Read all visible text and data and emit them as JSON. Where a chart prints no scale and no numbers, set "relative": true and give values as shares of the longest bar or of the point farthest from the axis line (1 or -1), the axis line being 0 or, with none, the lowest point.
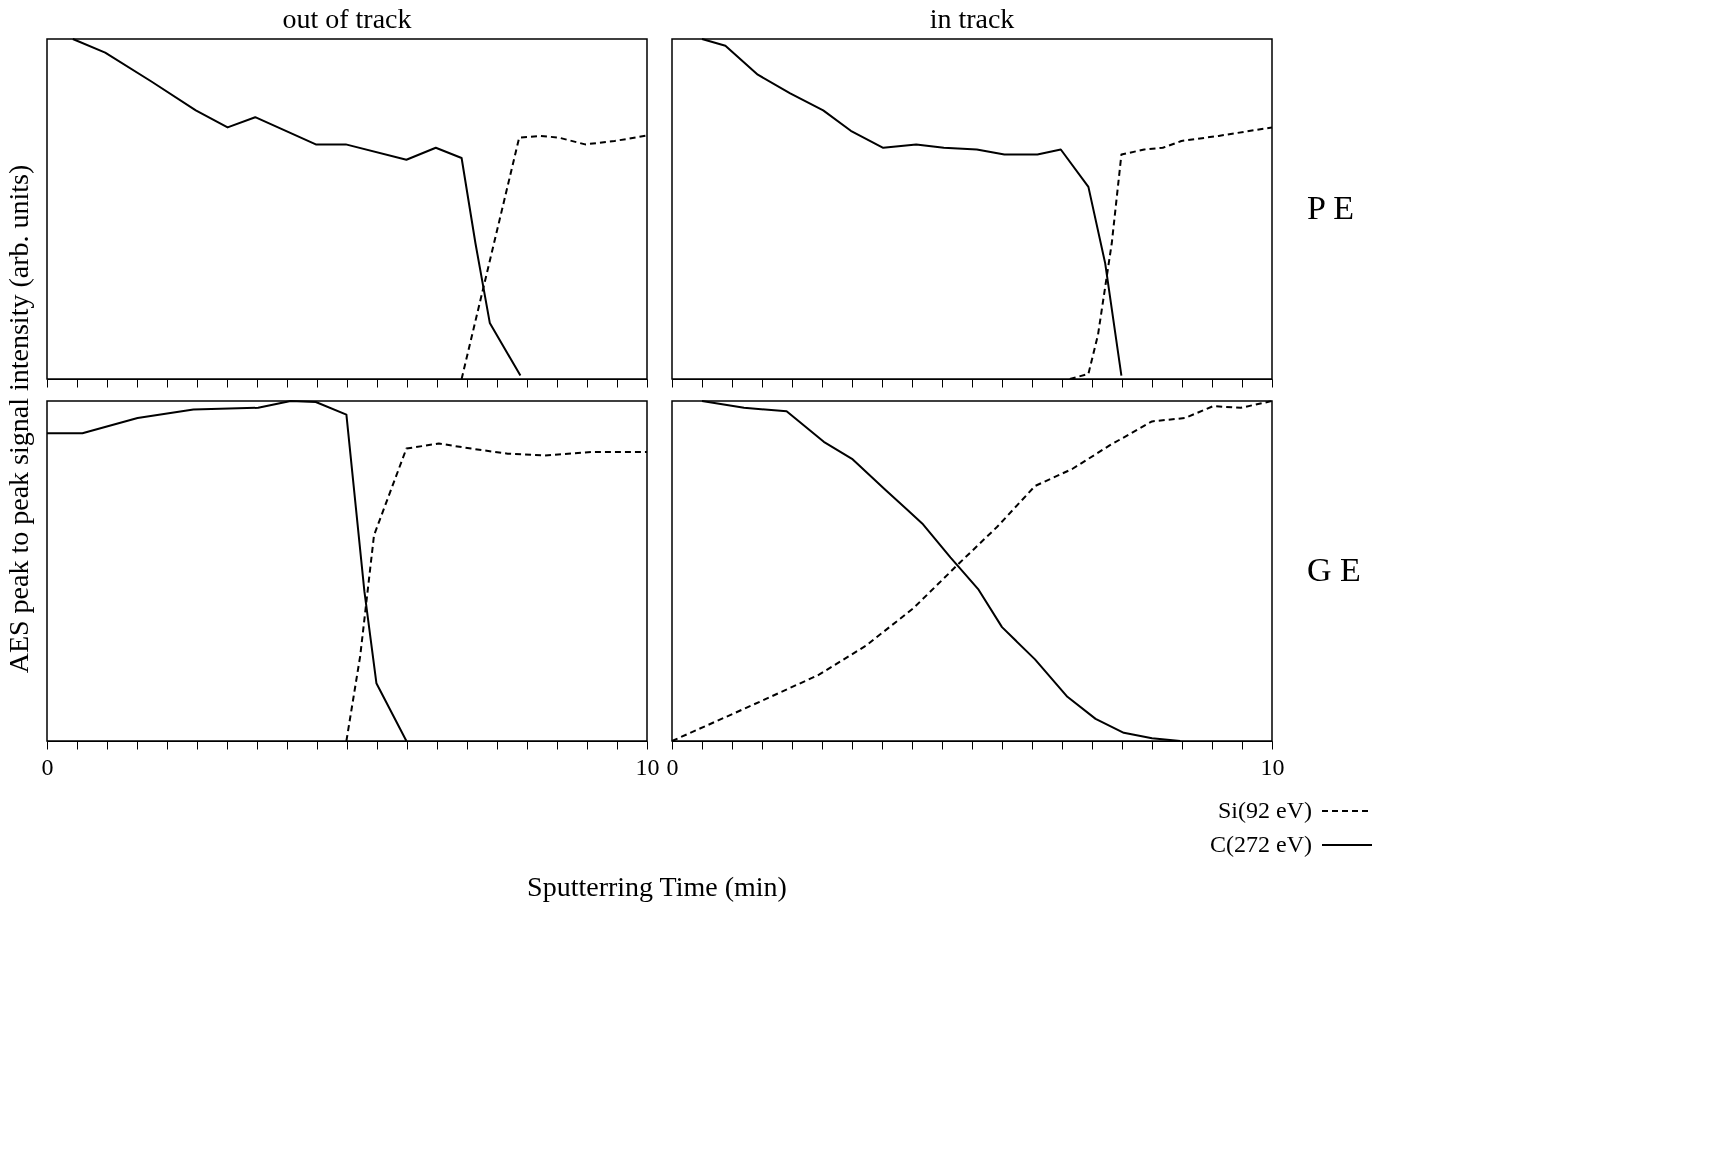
{
  "chart_data": [
    {
      "type": "line",
      "title": "out of track",
      "ylabel": "AES peak to peak signal intensity (arb. units)",
      "relative": true,
      "xlim": [
        0,
        10
      ],
      "tick_labels": false,
      "grid": false,
      "xticks": [
        {
          "value": 0,
          "label": null
        },
        {
          "value": 0.5,
          "label": null
        },
        {
          "value": 1,
          "label": null
        },
        {
          "value": 1.5,
          "label": null
        },
        {
          "value": 2,
          "label": null
        },
        {
          "value": 2.5,
          "label": null
        },
        {
          "value": 3,
          "label": null
        },
        {
          "value": 3.5,
          "label": null
        },
        {
          "value": 4,
          "label": null
        },
        {
          "value": 4.5,
          "label": null
        },
        {
          "value": 5,
          "label": null
        },
        {
          "value": 5.5,
          "label": null
        },
        {
          "value": 6,
          "label": null
        },
        {
          "value": 6.5,
          "label": null
        },
        {
          "value": 7,
          "label": null
        },
        {
          "value": 7.5,
          "label": null
        },
        {
          "value": 8,
          "label": null
        },
        {
          "value": 8.5,
          "label": null
        },
        {
          "value": 9,
          "label": null
        },
        {
          "value": 9.5,
          "label": null
        },
        {
          "value": 10,
          "label": null
        }
      ],
      "series": [
        {
          "color": "#000000",
          "line_style": "dashed",
          "x": [
            6.91,
            7.87,
            8.22,
            8.53,
            8.97,
            9.46,
            10
          ],
          "values": [
            0,
            0.71,
            0.715,
            0.71,
            0.69,
            0.7,
            0.716
          ]
        },
        {
          "color": "#000000",
          "line_style": "solid",
          "x": [
            0.43,
            0.97,
            1.74,
            2.48,
            3.01,
            3.47,
            3.98,
            4.48,
            4.98,
            5.99,
            6.48,
            6.91,
            7.14,
            7.38,
            7.89
          ],
          "values": [
            1.0,
            0.96,
            0.875,
            0.79,
            0.74,
            0.77,
            0.73,
            0.69,
            0.69,
            0.645,
            0.68,
            0.65,
            0.4,
            0.165,
            0.01
          ]
        }
      ]
    },
    {
      "type": "line",
      "title": "in track",
      "annotations": [
        "P E"
      ],
      "relative": true,
      "xlim": [
        0,
        10
      ],
      "tick_labels": false,
      "grid": false,
      "xticks": [
        {
          "value": 0,
          "label": null
        },
        {
          "value": 0.5,
          "label": null
        },
        {
          "value": 1,
          "label": null
        },
        {
          "value": 1.5,
          "label": null
        },
        {
          "value": 2,
          "label": null
        },
        {
          "value": 2.5,
          "label": null
        },
        {
          "value": 3,
          "label": null
        },
        {
          "value": 3.5,
          "label": null
        },
        {
          "value": 4,
          "label": null
        },
        {
          "value": 4.5,
          "label": null
        },
        {
          "value": 5,
          "label": null
        },
        {
          "value": 5.5,
          "label": null
        },
        {
          "value": 6,
          "label": null
        },
        {
          "value": 6.5,
          "label": null
        },
        {
          "value": 7,
          "label": null
        },
        {
          "value": 7.5,
          "label": null
        },
        {
          "value": 8,
          "label": null
        },
        {
          "value": 8.5,
          "label": null
        },
        {
          "value": 9,
          "label": null
        },
        {
          "value": 9.5,
          "label": null
        },
        {
          "value": 10,
          "label": null
        }
      ],
      "series": [
        {
          "color": "#000000",
          "line_style": "dashed",
          "x": [
            6.63,
            6.94,
            7.1,
            7.33,
            7.49,
            7.87,
            8.18,
            8.49,
            9.11,
            10
          ],
          "values": [
            0,
            0.015,
            0.13,
            0.4,
            0.66,
            0.675,
            0.68,
            0.7,
            0.715,
            0.74
          ]
        },
        {
          "color": "#000000",
          "line_style": "solid",
          "x": [
            0.5,
            0.89,
            1.43,
            1.97,
            2.52,
            2.98,
            3.52,
            4.07,
            4.53,
            5.08,
            5.54,
            6.09,
            6.48,
            6.94,
            7.22,
            7.49
          ],
          "values": [
            1.0,
            0.98,
            0.895,
            0.84,
            0.79,
            0.73,
            0.68,
            0.69,
            0.68,
            0.675,
            0.66,
            0.66,
            0.675,
            0.565,
            0.34,
            0.01
          ]
        }
      ]
    },
    {
      "type": "line",
      "xlabel": "Sputterring Time (min)",
      "relative": true,
      "xlim": [
        0,
        10
      ],
      "grid": false,
      "xticks": [
        {
          "value": 0,
          "label": "0"
        },
        {
          "value": 0.5,
          "label": null
        },
        {
          "value": 1,
          "label": null
        },
        {
          "value": 1.5,
          "label": null
        },
        {
          "value": 2,
          "label": null
        },
        {
          "value": 2.5,
          "label": null
        },
        {
          "value": 3,
          "label": null
        },
        {
          "value": 3.5,
          "label": null
        },
        {
          "value": 4,
          "label": null
        },
        {
          "value": 4.5,
          "label": null
        },
        {
          "value": 5,
          "label": null
        },
        {
          "value": 5.5,
          "label": null
        },
        {
          "value": 6,
          "label": null
        },
        {
          "value": 6.5,
          "label": null
        },
        {
          "value": 7,
          "label": null
        },
        {
          "value": 7.5,
          "label": null
        },
        {
          "value": 8,
          "label": null
        },
        {
          "value": 8.5,
          "label": null
        },
        {
          "value": 9,
          "label": null
        },
        {
          "value": 9.5,
          "label": null
        },
        {
          "value": 10,
          "label": "10"
        }
      ],
      "series": [
        {
          "color": "#000000",
          "line_style": "dashed",
          "x": [
            4.99,
            5.22,
            5.45,
            5.99,
            6.53,
            7.07,
            7.68,
            8.3,
            9.07,
            10
          ],
          "values": [
            0,
            0.25,
            0.605,
            0.86,
            0.875,
            0.86,
            0.845,
            0.84,
            0.85,
            0.85
          ]
        },
        {
          "color": "#000000",
          "line_style": "solid",
          "x": [
            0,
            0.59,
            1.51,
            2.44,
            3.52,
            4.06,
            4.48,
            4.99,
            5.29,
            5.49,
            5.99
          ],
          "values": [
            0.905,
            0.905,
            0.95,
            0.975,
            0.98,
            1.0,
            0.997,
            0.96,
            0.44,
            0.17,
            0
          ]
        }
      ]
    },
    {
      "type": "line",
      "annotations": [
        "G E"
      ],
      "relative": true,
      "xlim": [
        0,
        10
      ],
      "grid": false,
      "legend": "bottom right",
      "xticks": [
        {
          "value": 0,
          "label": "0"
        },
        {
          "value": 0.5,
          "label": null
        },
        {
          "value": 1,
          "label": null
        },
        {
          "value": 1.5,
          "label": null
        },
        {
          "value": 2,
          "label": null
        },
        {
          "value": 2.5,
          "label": null
        },
        {
          "value": 3,
          "label": null
        },
        {
          "value": 3.5,
          "label": null
        },
        {
          "value": 4,
          "label": null
        },
        {
          "value": 4.5,
          "label": null
        },
        {
          "value": 5,
          "label": null
        },
        {
          "value": 5.5,
          "label": null
        },
        {
          "value": 6,
          "label": null
        },
        {
          "value": 6.5,
          "label": null
        },
        {
          "value": 7,
          "label": null
        },
        {
          "value": 7.5,
          "label": null
        },
        {
          "value": 8,
          "label": null
        },
        {
          "value": 8.5,
          "label": null
        },
        {
          "value": 9,
          "label": null
        },
        {
          "value": 9.5,
          "label": null
        },
        {
          "value": 10,
          "label": "10"
        }
      ],
      "series": [
        {
          "name": "Si(92 eV)",
          "color": "#000000",
          "line_style": "dashed",
          "x": [
            0,
            0.89,
            1.52,
            2.45,
            3.23,
            4.02,
            4.8,
            5.42,
            6.05,
            6.67,
            7.3,
            8.0,
            8.55,
            9.02,
            9.48,
            10
          ],
          "values": [
            0,
            0.07,
            0.12,
            0.195,
            0.28,
            0.39,
            0.525,
            0.63,
            0.75,
            0.8,
            0.87,
            0.94,
            0.95,
            0.985,
            0.98,
            1.0
          ]
        },
        {
          "name": "C(272 eV)",
          "color": "#000000",
          "line_style": "solid",
          "x": [
            0.5,
            1.2,
            1.91,
            2.53,
            3.0,
            3.55,
            4.17,
            4.64,
            5.11,
            5.5,
            6.05,
            6.59,
            7.06,
            7.53,
            8.0,
            8.47
          ],
          "values": [
            1.0,
            0.98,
            0.97,
            0.88,
            0.83,
            0.74,
            0.64,
            0.54,
            0.445,
            0.335,
            0.24,
            0.13,
            0.065,
            0.024,
            0.008,
            0
          ]
        }
      ]
    }
  ]
}
